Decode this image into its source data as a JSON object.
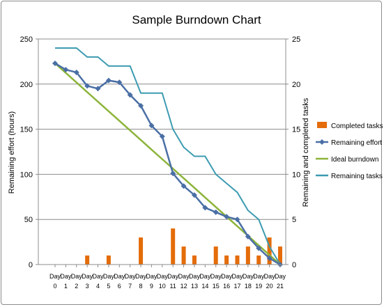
{
  "chart_data": {
    "type": "bar",
    "title": "Sample Burndown Chart",
    "ylabel": "Remaining effort (hours)",
    "y2label": "Remaining and completed tasks",
    "ylim": [
      0,
      250
    ],
    "y2lim": [
      0,
      25
    ],
    "yticks": [
      "0",
      "50",
      "100",
      "150",
      "200",
      "250"
    ],
    "y2ticks": [
      "0",
      "5",
      "10",
      "15",
      "20",
      "25"
    ],
    "grid": true,
    "legend_position": "right",
    "categories": [
      "Day 0",
      "Day 1",
      "Day 2",
      "Day 3",
      "Day 4",
      "Day 5",
      "Day 6",
      "Day 7",
      "Day 8",
      "Day 9",
      "Day 10",
      "Day 11",
      "Day 12",
      "Day 13",
      "Day 14",
      "Day 15",
      "Day 16",
      "Day 17",
      "Day 18",
      "Day 19",
      "Day 20",
      "Day 21"
    ],
    "series": [
      {
        "name": "Completed tasks",
        "type": "bar",
        "axis": "right",
        "color": "#e46c0a",
        "values": [
          0,
          0,
          0,
          1,
          0,
          1,
          0,
          0,
          3,
          0,
          0,
          4,
          2,
          1,
          0,
          2,
          1,
          1,
          2,
          1,
          3,
          2
        ]
      },
      {
        "name": "Remaining effort",
        "type": "line",
        "marker": "diamond",
        "axis": "left",
        "color": "#4a6fa5",
        "values": [
          223,
          216,
          213,
          198,
          195,
          204,
          202,
          188,
          176,
          154,
          142,
          101,
          87,
          77,
          63,
          58,
          53,
          50,
          31,
          18,
          7,
          0
        ]
      },
      {
        "name": "Ideal burndown",
        "type": "line",
        "axis": "left",
        "color": "#8cb43a",
        "values": [
          223,
          212.4,
          201.8,
          191.1,
          180.5,
          169.9,
          159.3,
          148.7,
          138.1,
          127.4,
          116.8,
          106.2,
          95.6,
          85,
          74.3,
          63.7,
          53.1,
          42.5,
          31.9,
          21.2,
          10.6,
          0
        ]
      },
      {
        "name": "Remaining tasks",
        "type": "step-line",
        "axis": "right",
        "color": "#3d9bb1",
        "values": [
          24,
          24,
          24,
          23,
          23,
          22,
          22,
          22,
          19,
          19,
          19,
          15,
          13,
          12,
          12,
          10,
          9,
          8,
          6,
          5,
          2,
          0
        ]
      }
    ]
  }
}
